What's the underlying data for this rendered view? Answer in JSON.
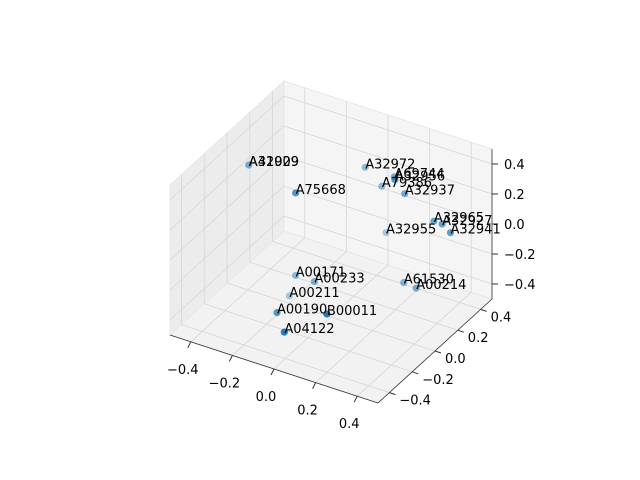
{
  "chart_data": {
    "type": "scatter3d",
    "labels": [
      "A31909",
      "A42029",
      "A75668",
      "A32972",
      "A69744",
      "A79386",
      "A32956",
      "A32937",
      "A32965",
      "A32927",
      "A32941",
      "A32955",
      "A00171",
      "A00233",
      "A00211",
      "A00190",
      "B00011",
      "A04122",
      "A61530",
      "A00214"
    ],
    "x": [
      -0.45,
      -0.45,
      -0.17,
      0.0,
      0.14,
      0.08,
      0.17,
      0.19,
      0.33,
      0.37,
      0.41,
      0.1,
      -0.17,
      -0.08,
      -0.2,
      -0.15,
      0.09,
      -0.06,
      0.24,
      0.3
    ],
    "y": [
      0.1,
      0.1,
      0.0,
      0.3,
      0.3,
      0.3,
      0.25,
      0.3,
      0.3,
      0.3,
      0.3,
      0.3,
      0.0,
      0.0,
      0.0,
      -0.2,
      -0.2,
      -0.3,
      0.2,
      0.2
    ],
    "z": [
      0.24,
      0.24,
      0.25,
      0.29,
      0.29,
      0.2,
      0.32,
      0.2,
      0.08,
      0.08,
      0.04,
      -0.1,
      -0.3,
      -0.3,
      -0.45,
      -0.4,
      -0.3,
      -0.42,
      -0.3,
      -0.31
    ],
    "color": "#1f77b4",
    "xlim": [
      -0.5,
      0.5
    ],
    "ylim": [
      -0.5,
      0.5
    ],
    "zlim": [
      -0.5,
      0.5
    ],
    "xticks": [
      {
        "value": -0.4,
        "label": "−0.4"
      },
      {
        "value": -0.2,
        "label": "−0.2"
      },
      {
        "value": 0,
        "label": "0.0"
      },
      0.2,
      0.4
    ],
    "yticks": [
      {
        "value": -0.4,
        "label": "−0.4"
      },
      {
        "value": -0.2,
        "label": "−0.2"
      },
      {
        "value": 0,
        "label": "0.0"
      },
      0.2,
      0.4
    ],
    "zticks": [
      {
        "value": -0.4,
        "label": "−0.4"
      },
      {
        "value": -0.2,
        "label": "−0.2"
      },
      {
        "value": 0,
        "label": "0.0"
      },
      0.2,
      0.4
    ],
    "grid": true
  }
}
